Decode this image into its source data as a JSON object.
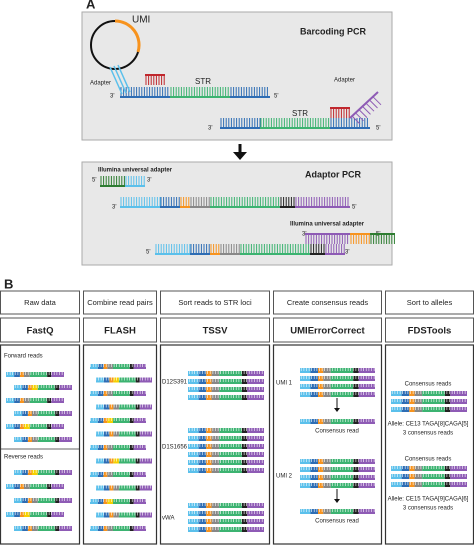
{
  "panel_a": {
    "label": "A",
    "barcoding": {
      "title": "Barcoding PCR",
      "umi": "UMI",
      "adapter_1": "Adapter",
      "str_1": "STR",
      "str_2": "STR",
      "adapter_2": "Adapter",
      "ends": [
        "3'",
        "5'",
        "3'",
        "5'"
      ]
    },
    "adaptor": {
      "title": "Adaptor PCR",
      "adapter_1": "Illumina universal adapter",
      "adapter_2": "Illumina universal adapter",
      "ends": [
        "5'",
        "3'",
        "3'",
        "5'",
        "3'",
        "5'",
        "5'",
        "3'"
      ]
    }
  },
  "panel_b": {
    "label": "B",
    "steps": [
      {
        "step": "Raw data",
        "tool": "FastQ"
      },
      {
        "step": "Combine read pairs",
        "tool": "FLASH"
      },
      {
        "step": "Sort reads to STR loci",
        "tool": "TSSV"
      },
      {
        "step": "Create consensus reads",
        "tool": "UMIErrorCorrect"
      },
      {
        "step": "Sort to alleles",
        "tool": "FDSTools"
      }
    ],
    "raw": {
      "forward": "Forward reads",
      "reverse": "Reverse reads"
    },
    "loci": [
      "D12S391",
      "D1S1656",
      "vWA"
    ],
    "umis": [
      {
        "label": "UMI 1",
        "result": "Consensus read"
      },
      {
        "label": "UMI 2",
        "result": "Consensus read"
      }
    ],
    "alleles": [
      {
        "heading": "Consensus reads",
        "allele": "Allele: CE13 TAGA[8]CAGA[5]",
        "count": "3 consensus reads"
      },
      {
        "heading": "Consensus reads",
        "allele": "Allele: CE15 TAGA[9]CAGA[6]",
        "count": "3 consensus reads"
      }
    ]
  }
}
